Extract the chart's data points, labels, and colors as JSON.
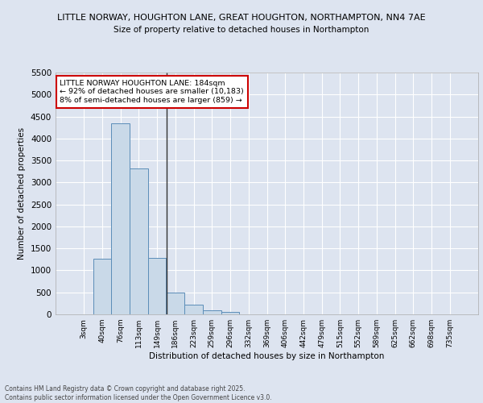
{
  "title_line1": "LITTLE NORWAY, HOUGHTON LANE, GREAT HOUGHTON, NORTHAMPTON, NN4 7AE",
  "title_line2": "Size of property relative to detached houses in Northampton",
  "xlabel": "Distribution of detached houses by size in Northampton",
  "ylabel": "Number of detached properties",
  "footer_line1": "Contains HM Land Registry data © Crown copyright and database right 2025.",
  "footer_line2": "Contains public sector information licensed under the Open Government Licence v3.0.",
  "categories": [
    "3sqm",
    "40sqm",
    "76sqm",
    "113sqm",
    "149sqm",
    "186sqm",
    "223sqm",
    "259sqm",
    "296sqm",
    "332sqm",
    "369sqm",
    "406sqm",
    "442sqm",
    "479sqm",
    "515sqm",
    "552sqm",
    "589sqm",
    "625sqm",
    "662sqm",
    "698sqm",
    "735sqm"
  ],
  "values": [
    0,
    1270,
    4350,
    3310,
    1280,
    500,
    215,
    85,
    55,
    0,
    0,
    0,
    0,
    0,
    0,
    0,
    0,
    0,
    0,
    0,
    0
  ],
  "bar_color": "#c9d9e8",
  "bar_edge_color": "#5b8db8",
  "vline_x_index": 5,
  "annotation_text_line1": "LITTLE NORWAY HOUGHTON LANE: 184sqm",
  "annotation_text_line2": "← 92% of detached houses are smaller (10,183)",
  "annotation_text_line3": "8% of semi-detached houses are larger (859) →",
  "annotation_box_color": "#ffffff",
  "annotation_box_edge_color": "#cc0000",
  "ylim": [
    0,
    5500
  ],
  "yticks": [
    0,
    500,
    1000,
    1500,
    2000,
    2500,
    3000,
    3500,
    4000,
    4500,
    5000,
    5500
  ],
  "bg_color": "#dde4f0",
  "plot_bg_color": "#dde4f0",
  "grid_color": "#ffffff",
  "figsize": [
    6.0,
    5.0
  ],
  "dpi": 100
}
